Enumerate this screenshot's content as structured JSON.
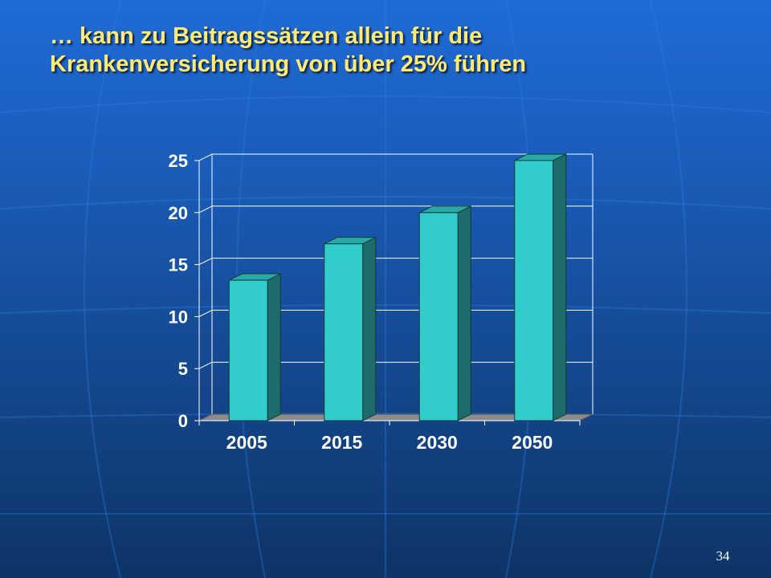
{
  "slide": {
    "title_line1": "… kann zu Beitragssätzen allein für die",
    "title_line2": "Krankenversicherung von über 25% führen",
    "page_number": "34"
  },
  "colors": {
    "title": "#ffeb73",
    "bar_front": "#33cccc",
    "bar_side": "#1d6b6b",
    "bar_top": "#2aa8a8",
    "floor": "#8c8c8c",
    "grid": "#ffffff",
    "tick_label": "#ffffff"
  },
  "chart_data": {
    "type": "bar",
    "categories": [
      "2005",
      "2015",
      "2030",
      "2050"
    ],
    "values": [
      13.5,
      17,
      20,
      25
    ],
    "yticks": [
      0,
      5,
      10,
      15,
      20,
      25
    ],
    "ylim": [
      0,
      25
    ],
    "grid": true,
    "legend": false,
    "style": "3d-column"
  }
}
